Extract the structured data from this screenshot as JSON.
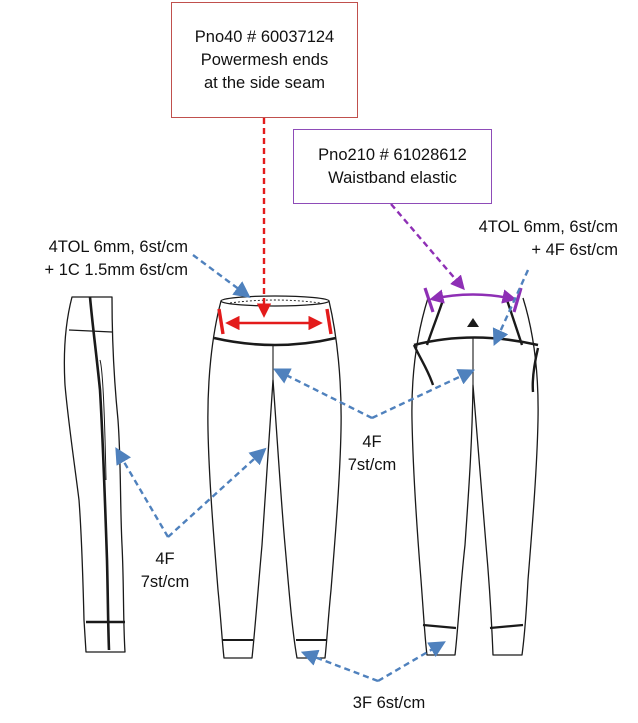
{
  "callouts": {
    "powermesh": {
      "line1": "Pno40 # 60037124",
      "line2": "Powermesh  ends",
      "line3": "at the side seam",
      "color": "#c0504d"
    },
    "waistband": {
      "line1": "Pno210 # 61028612",
      "line2": "Waistband elastic",
      "color": "#8e4cb8"
    }
  },
  "labels": {
    "front_waist": {
      "line1": "4TOL 6mm, 6st/cm",
      "line2": "+ 1C 1.5mm 6st/cm"
    },
    "back_waist": {
      "line1": "4TOL 6mm, 6st/cm",
      "line2": "+ 4F 6st/cm"
    },
    "center_seam": {
      "line1": "4F",
      "line2": "7st/cm"
    },
    "side_seam": {
      "line1": "4F",
      "line2": "7st/cm"
    },
    "hem": {
      "line1": "3F  6st/cm"
    }
  },
  "colors": {
    "outline": "#1a1a1a",
    "arrow_blue": "#4f81bd",
    "marker_red": "#e31b1b",
    "marker_purple": "#8e2fb5"
  }
}
